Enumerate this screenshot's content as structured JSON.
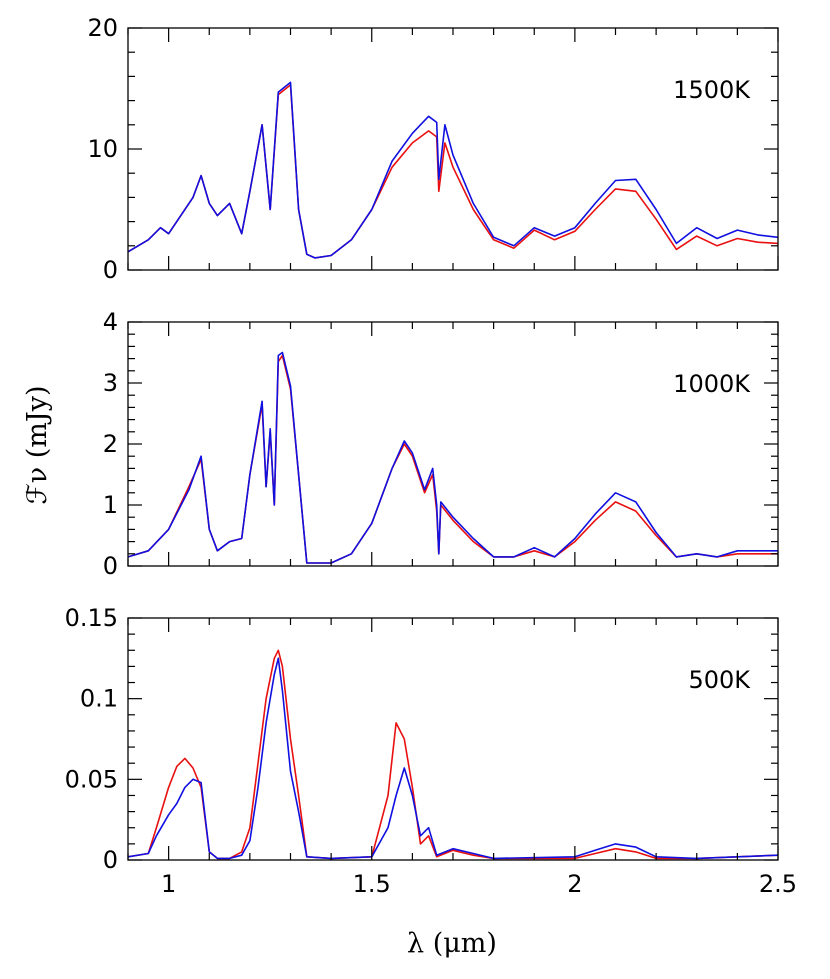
{
  "colors": {
    "red_series": "#e81010",
    "blue_series": "#1010e0"
  },
  "chart_data": [
    {
      "type": "line",
      "panel_label": "1500K",
      "xlim": [
        0.9,
        2.5
      ],
      "ylim": [
        0,
        20
      ],
      "yticks": [
        0,
        10,
        20
      ],
      "ytick_labels": [
        "0",
        "10",
        "20"
      ],
      "series": [
        {
          "color": "red",
          "x": [
            0.9,
            0.95,
            0.98,
            1.0,
            1.03,
            1.06,
            1.08,
            1.1,
            1.12,
            1.15,
            1.18,
            1.2,
            1.23,
            1.25,
            1.27,
            1.3,
            1.32,
            1.34,
            1.36,
            1.4,
            1.45,
            1.5,
            1.55,
            1.6,
            1.64,
            1.66,
            1.665,
            1.68,
            1.7,
            1.75,
            1.8,
            1.85,
            1.9,
            1.95,
            2.0,
            2.05,
            2.1,
            2.15,
            2.2,
            2.25,
            2.3,
            2.35,
            2.4,
            2.45,
            2.5
          ],
          "y": [
            1.5,
            2.5,
            3.5,
            3.0,
            4.5,
            6.0,
            7.8,
            5.5,
            4.5,
            5.5,
            3.0,
            6.5,
            12.0,
            5.0,
            14.5,
            15.3,
            5.0,
            1.3,
            1.0,
            1.2,
            2.5,
            5.0,
            8.5,
            10.5,
            11.5,
            11.0,
            6.5,
            10.5,
            8.5,
            5.0,
            2.5,
            1.8,
            3.3,
            2.5,
            3.2,
            5.0,
            6.7,
            6.5,
            4.2,
            1.7,
            2.8,
            2.0,
            2.6,
            2.3,
            2.2
          ]
        },
        {
          "color": "blue",
          "x": [
            0.9,
            0.95,
            0.98,
            1.0,
            1.03,
            1.06,
            1.08,
            1.1,
            1.12,
            1.15,
            1.18,
            1.2,
            1.23,
            1.25,
            1.27,
            1.3,
            1.32,
            1.34,
            1.36,
            1.4,
            1.45,
            1.5,
            1.55,
            1.6,
            1.64,
            1.66,
            1.665,
            1.68,
            1.7,
            1.75,
            1.8,
            1.85,
            1.9,
            1.95,
            2.0,
            2.05,
            2.1,
            2.15,
            2.2,
            2.25,
            2.3,
            2.35,
            2.4,
            2.45,
            2.5
          ],
          "y": [
            1.5,
            2.5,
            3.5,
            3.0,
            4.5,
            6.0,
            7.8,
            5.5,
            4.5,
            5.5,
            3.0,
            6.5,
            12.0,
            5.0,
            14.7,
            15.5,
            5.0,
            1.3,
            1.0,
            1.2,
            2.5,
            5.0,
            9.0,
            11.3,
            12.7,
            12.2,
            7.5,
            12.0,
            9.5,
            5.5,
            2.7,
            2.0,
            3.5,
            2.8,
            3.5,
            5.5,
            7.4,
            7.5,
            5.0,
            2.2,
            3.5,
            2.6,
            3.3,
            2.9,
            2.7
          ]
        }
      ]
    },
    {
      "type": "line",
      "panel_label": "1000K",
      "xlim": [
        0.9,
        2.5
      ],
      "ylim": [
        0,
        4
      ],
      "yticks": [
        0,
        1,
        2,
        3,
        4
      ],
      "ytick_labels": [
        "0",
        "1",
        "2",
        "3",
        "4"
      ],
      "series": [
        {
          "color": "red",
          "x": [
            0.9,
            0.95,
            1.0,
            1.05,
            1.08,
            1.1,
            1.12,
            1.15,
            1.18,
            1.2,
            1.23,
            1.24,
            1.25,
            1.26,
            1.27,
            1.28,
            1.3,
            1.32,
            1.34,
            1.4,
            1.45,
            1.5,
            1.55,
            1.58,
            1.6,
            1.63,
            1.65,
            1.66,
            1.665,
            1.67,
            1.7,
            1.75,
            1.8,
            1.85,
            1.9,
            1.95,
            2.0,
            2.05,
            2.1,
            2.15,
            2.2,
            2.25,
            2.3,
            2.35,
            2.4,
            2.5
          ],
          "y": [
            0.15,
            0.25,
            0.6,
            1.3,
            1.75,
            0.6,
            0.25,
            0.4,
            0.45,
            1.5,
            2.65,
            1.3,
            2.2,
            1.0,
            3.35,
            3.45,
            2.9,
            1.5,
            0.05,
            0.05,
            0.2,
            0.7,
            1.6,
            2.0,
            1.8,
            1.2,
            1.5,
            0.9,
            0.2,
            1.0,
            0.75,
            0.4,
            0.15,
            0.15,
            0.25,
            0.15,
            0.4,
            0.75,
            1.05,
            0.9,
            0.5,
            0.15,
            0.2,
            0.15,
            0.2,
            0.2
          ]
        },
        {
          "color": "blue",
          "x": [
            0.9,
            0.95,
            1.0,
            1.05,
            1.08,
            1.1,
            1.12,
            1.15,
            1.18,
            1.2,
            1.23,
            1.24,
            1.25,
            1.26,
            1.27,
            1.28,
            1.3,
            1.32,
            1.34,
            1.4,
            1.45,
            1.5,
            1.55,
            1.58,
            1.6,
            1.63,
            1.65,
            1.66,
            1.665,
            1.67,
            1.7,
            1.75,
            1.8,
            1.85,
            1.9,
            1.95,
            2.0,
            2.05,
            2.1,
            2.15,
            2.2,
            2.25,
            2.3,
            2.35,
            2.4,
            2.5
          ],
          "y": [
            0.15,
            0.25,
            0.6,
            1.25,
            1.8,
            0.6,
            0.25,
            0.4,
            0.45,
            1.5,
            2.7,
            1.3,
            2.25,
            1.0,
            3.45,
            3.5,
            2.95,
            1.5,
            0.05,
            0.05,
            0.2,
            0.7,
            1.6,
            2.05,
            1.85,
            1.25,
            1.6,
            1.0,
            0.2,
            1.05,
            0.8,
            0.45,
            0.15,
            0.15,
            0.3,
            0.15,
            0.45,
            0.85,
            1.2,
            1.05,
            0.55,
            0.15,
            0.2,
            0.15,
            0.25,
            0.25
          ]
        }
      ]
    },
    {
      "type": "line",
      "panel_label": "500K",
      "xlim": [
        0.9,
        2.5
      ],
      "ylim": [
        0,
        0.15
      ],
      "yticks": [
        0,
        0.05,
        0.1,
        0.15
      ],
      "ytick_labels": [
        "0",
        "0.05",
        "0.1",
        "0.15"
      ],
      "series": [
        {
          "color": "red",
          "x": [
            0.9,
            0.95,
            0.97,
            1.0,
            1.02,
            1.04,
            1.06,
            1.08,
            1.1,
            1.12,
            1.15,
            1.18,
            1.2,
            1.22,
            1.24,
            1.26,
            1.27,
            1.28,
            1.3,
            1.32,
            1.34,
            1.4,
            1.5,
            1.54,
            1.56,
            1.58,
            1.6,
            1.62,
            1.64,
            1.66,
            1.7,
            1.75,
            1.8,
            2.0,
            2.05,
            2.1,
            2.15,
            2.2,
            2.3,
            2.5
          ],
          "y": [
            0.002,
            0.004,
            0.02,
            0.045,
            0.058,
            0.063,
            0.057,
            0.045,
            0.005,
            0.001,
            0.001,
            0.005,
            0.02,
            0.06,
            0.1,
            0.125,
            0.13,
            0.12,
            0.075,
            0.04,
            0.002,
            0.001,
            0.002,
            0.04,
            0.085,
            0.075,
            0.045,
            0.01,
            0.015,
            0.002,
            0.006,
            0.003,
            0.001,
            0.001,
            0.004,
            0.007,
            0.005,
            0.001,
            0.001,
            0.003
          ]
        },
        {
          "color": "blue",
          "x": [
            0.9,
            0.95,
            0.97,
            1.0,
            1.02,
            1.04,
            1.06,
            1.08,
            1.1,
            1.12,
            1.15,
            1.18,
            1.2,
            1.22,
            1.24,
            1.26,
            1.27,
            1.28,
            1.3,
            1.32,
            1.34,
            1.4,
            1.5,
            1.54,
            1.56,
            1.58,
            1.6,
            1.62,
            1.64,
            1.66,
            1.7,
            1.75,
            1.8,
            2.0,
            2.05,
            2.1,
            2.15,
            2.2,
            2.3,
            2.5
          ],
          "y": [
            0.002,
            0.004,
            0.015,
            0.028,
            0.035,
            0.045,
            0.05,
            0.048,
            0.005,
            0.001,
            0.001,
            0.003,
            0.012,
            0.045,
            0.085,
            0.115,
            0.125,
            0.105,
            0.055,
            0.03,
            0.002,
            0.001,
            0.002,
            0.02,
            0.04,
            0.057,
            0.04,
            0.015,
            0.02,
            0.003,
            0.007,
            0.004,
            0.001,
            0.002,
            0.006,
            0.01,
            0.008,
            0.002,
            0.001,
            0.003
          ]
        }
      ]
    }
  ],
  "x_axis": {
    "ticks": [
      1,
      1.5,
      2,
      2.5
    ],
    "tick_labels": [
      "1",
      "1.5",
      "2",
      "2.5"
    ],
    "label": "λ  (μm)"
  },
  "y_axis": {
    "label": "ℱν  (mJy)"
  }
}
